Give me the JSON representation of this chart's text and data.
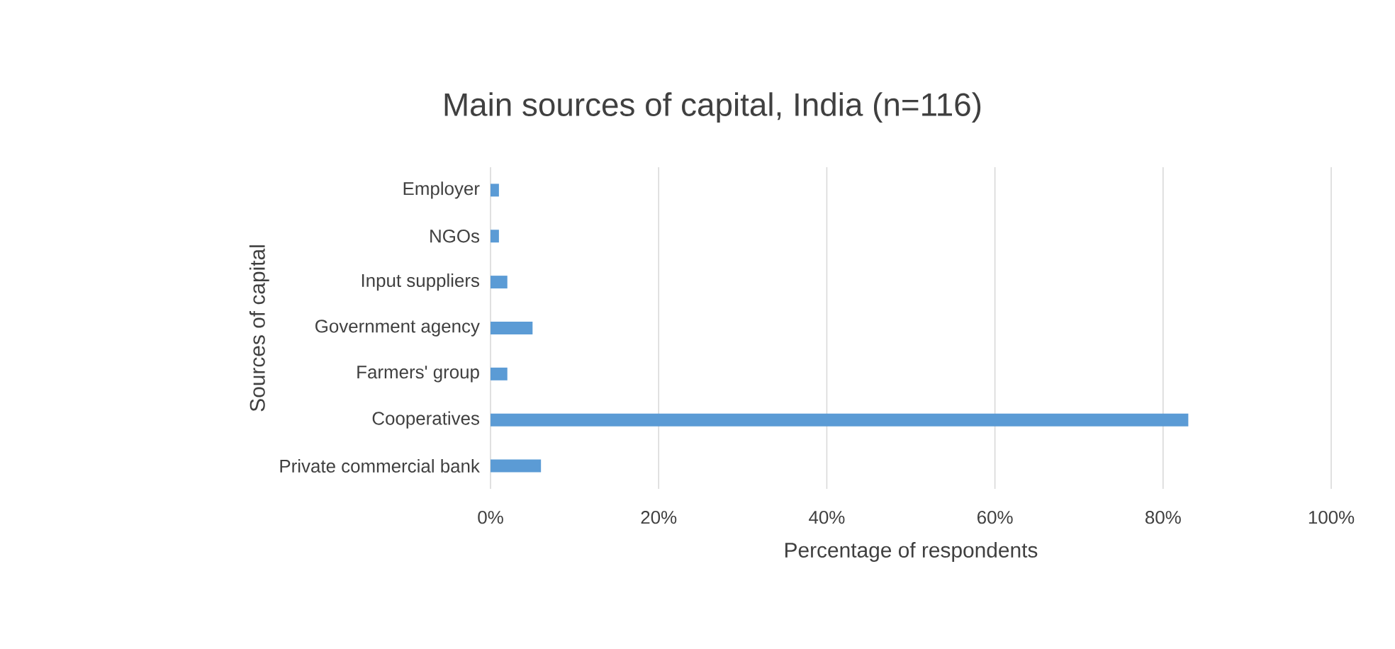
{
  "chart_data": {
    "type": "bar",
    "orientation": "horizontal",
    "title": "Main sources of capital, India (n=116)",
    "xlabel": "Percentage of respondents",
    "ylabel": "Sources of capital",
    "categories": [
      "Employer",
      "NGOs",
      "Input suppliers",
      "Government agency",
      "Farmers' group",
      "Cooperatives",
      "Private commercial bank"
    ],
    "values": [
      1,
      1,
      2,
      5,
      2,
      83,
      6
    ],
    "color": "#5b9bd5",
    "xlim": [
      0,
      100
    ],
    "xticks": [
      {
        "value": 0,
        "label": "0%"
      },
      {
        "value": 20,
        "label": "20%"
      },
      {
        "value": 40,
        "label": "40%"
      },
      {
        "value": 60,
        "label": "60%"
      },
      {
        "value": 80,
        "label": "80%"
      },
      {
        "value": 100,
        "label": "100%"
      }
    ],
    "grid": "x"
  }
}
